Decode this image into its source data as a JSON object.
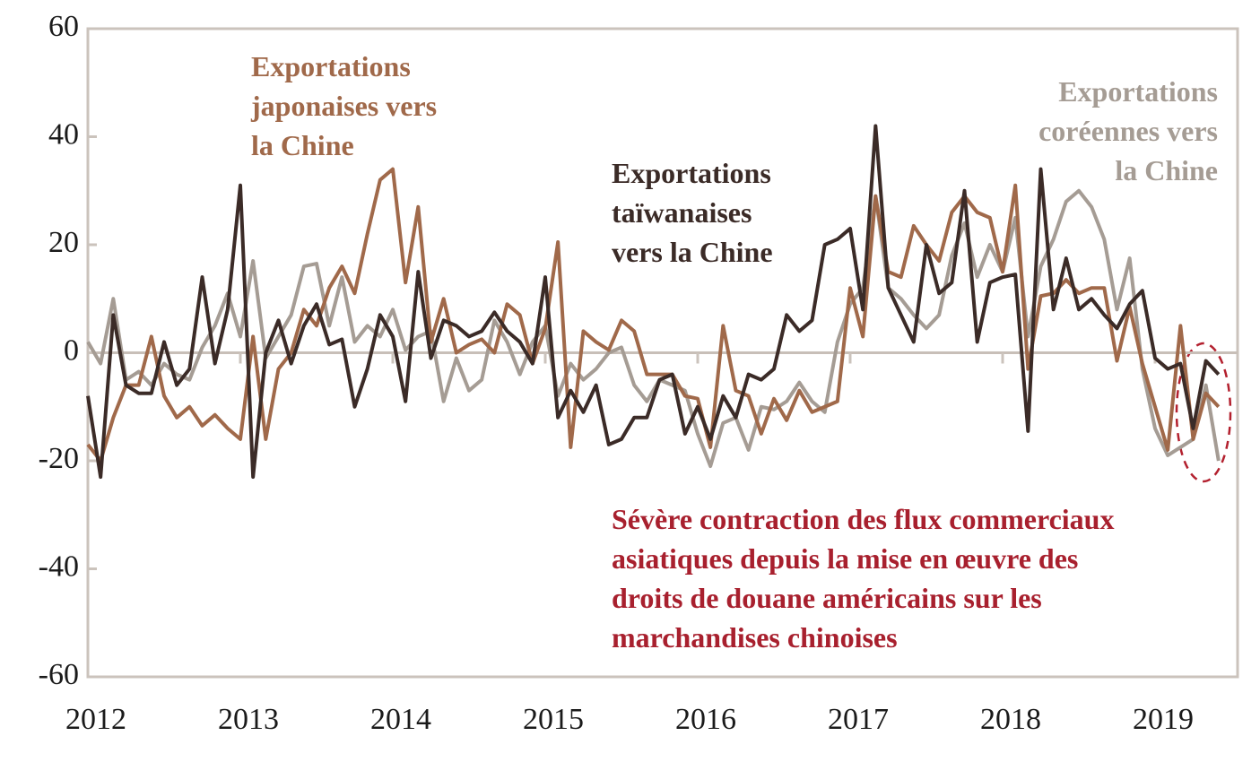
{
  "chart_data": {
    "type": "line",
    "categories": [
      "2012",
      null,
      null,
      null,
      null,
      null,
      null,
      null,
      null,
      null,
      null,
      null,
      "2013",
      null,
      null,
      null,
      null,
      null,
      null,
      null,
      null,
      null,
      null,
      null,
      "2014",
      null,
      null,
      null,
      null,
      null,
      null,
      null,
      null,
      null,
      null,
      null,
      "2015",
      null,
      null,
      null,
      null,
      null,
      null,
      null,
      null,
      null,
      null,
      null,
      "2016",
      null,
      null,
      null,
      null,
      null,
      null,
      null,
      null,
      null,
      null,
      null,
      "2017",
      null,
      null,
      null,
      null,
      null,
      null,
      null,
      null,
      null,
      null,
      null,
      "2018",
      null,
      null,
      null,
      null,
      null,
      null,
      null,
      null,
      null,
      null,
      null,
      "2019",
      null,
      null,
      null,
      null,
      null
    ],
    "ylim": [
      -60,
      60
    ],
    "yticks": [
      60,
      40,
      20,
      0,
      -20,
      -40,
      -60
    ],
    "series": [
      {
        "name": [
          "Exportations",
          "coréennes vers",
          "la Chine"
        ],
        "color": "#a59c94",
        "values": [
          2,
          -2,
          10,
          -5,
          -3.5,
          -6,
          -2,
          -4,
          -5,
          1,
          5,
          11,
          3,
          17,
          -1,
          3,
          7,
          16,
          16.5,
          5,
          14,
          2,
          5,
          3,
          8,
          0.5,
          3,
          4,
          -9,
          -1,
          -7,
          -5,
          6,
          2,
          -4,
          2,
          5,
          -8,
          -2,
          -5,
          -3,
          0,
          1,
          -6,
          -9,
          -5,
          -6,
          -7,
          -15,
          -21,
          -13,
          -12,
          -18,
          -10,
          -10.5,
          -9,
          -5.5,
          -9,
          -11,
          2,
          9,
          12,
          29,
          12,
          10,
          7,
          4.5,
          7,
          18,
          24,
          14,
          20,
          15,
          25,
          3,
          16,
          21,
          28,
          30,
          27,
          21,
          8,
          17.5,
          -3,
          -14,
          -19,
          -17.5,
          -16,
          -6,
          -20
        ]
      },
      {
        "name": [
          "Exportations",
          "japonaises vers",
          "la Chine"
        ],
        "color": "#a0694a",
        "values": [
          -17,
          -20,
          -12,
          -6,
          -6,
          3,
          -8,
          -12,
          -10,
          -13.5,
          -11.5,
          -14,
          -16,
          3,
          -16,
          -3,
          0,
          8,
          5,
          12,
          16,
          11,
          22,
          32,
          34,
          13,
          27,
          2,
          10,
          0,
          1.5,
          2.5,
          0,
          9,
          7,
          -2,
          4.5,
          20.5,
          -17.5,
          4,
          2,
          0.5,
          6,
          4,
          -4,
          -4,
          -4,
          -8,
          -8.5,
          -17.5,
          5,
          -7,
          -8,
          -15,
          -8.5,
          -12.5,
          -7,
          -11,
          -10,
          -9,
          12,
          3,
          29,
          15,
          14,
          23.5,
          20,
          17,
          26,
          29,
          26,
          25,
          15,
          31,
          -3,
          10.5,
          11,
          13.5,
          11,
          12,
          12,
          -1.5,
          8.5,
          -2,
          -10,
          -18,
          5,
          -16,
          -7.5,
          -10
        ]
      },
      {
        "name": [
          "Exportations",
          "taïwanaises",
          "vers la Chine"
        ],
        "color": "#3b2b27",
        "values": [
          -8,
          -23,
          7,
          -6,
          -7.5,
          -7.5,
          2,
          -6,
          -3,
          14,
          -2,
          8,
          31,
          -23,
          0,
          6,
          -2,
          5,
          9,
          1.5,
          2.5,
          -10,
          -3,
          7,
          3,
          -9,
          15,
          -1,
          6,
          5,
          3,
          4,
          7.5,
          4,
          2,
          -2,
          14,
          -12,
          -7,
          -11,
          -6,
          -17,
          -16,
          -12,
          -12,
          -5,
          -4,
          -15,
          -10,
          -16,
          -8,
          -12,
          -4,
          -5,
          -3,
          7,
          4,
          6,
          20,
          21,
          23,
          8,
          42,
          12,
          7,
          2,
          20,
          11,
          13,
          30,
          2,
          13,
          14,
          14.5,
          -14.5,
          34,
          8,
          17.5,
          8,
          10,
          7,
          4.5,
          9,
          11.5,
          -1,
          -3,
          -2,
          -14,
          -1.5,
          -4
        ]
      }
    ],
    "annotation": {
      "text": [
        "Sévère contraction des flux commerciaux",
        "asiatiques depuis la mise en œuvre des",
        "droits de douane américains sur les",
        "marchandises chinoises"
      ],
      "color": "#a8202e"
    }
  }
}
